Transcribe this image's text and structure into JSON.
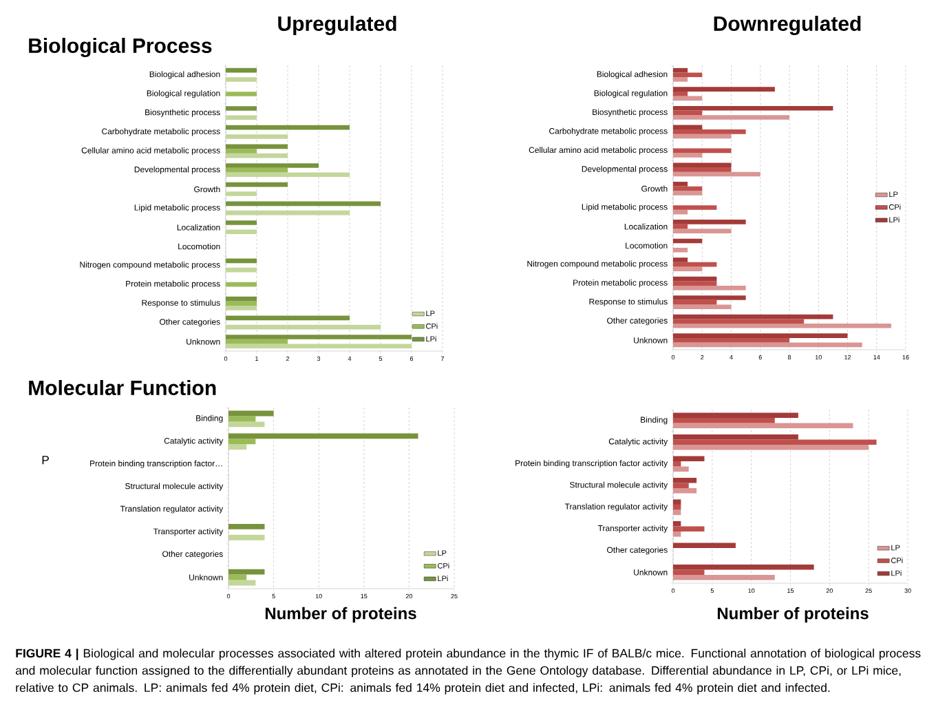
{
  "chart_data": [
    {
      "type": "bar",
      "orientation": "horizontal",
      "title": "Upregulated",
      "subtitle": "Biological Process",
      "categories": [
        "Biological adhesion",
        "Biological regulation",
        "Biosynthetic process",
        "Carbohydrate metabolic process",
        "Cellular amino acid metabolic process",
        "Developmental process",
        "Growth",
        "Lipid metabolic process",
        "Localization",
        "Locomotion",
        "Nitrogen compound metabolic process",
        "Protein metabolic process",
        "Response to stimulus",
        "Other categories",
        "Unknown"
      ],
      "series": [
        {
          "name": "LP",
          "color": "#c3d69b",
          "values": [
            1,
            0,
            1,
            2,
            2,
            4,
            1,
            4,
            1,
            0,
            1,
            0,
            1,
            5,
            6
          ]
        },
        {
          "name": "CPi",
          "color": "#9bbb59",
          "values": [
            0,
            1,
            0,
            0,
            1,
            2,
            0,
            0,
            0,
            0,
            0,
            1,
            1,
            0,
            2
          ]
        },
        {
          "name": "LPi",
          "color": "#77933c",
          "values": [
            1,
            0,
            1,
            4,
            2,
            3,
            2,
            5,
            1,
            0,
            1,
            0,
            1,
            4,
            6
          ]
        }
      ],
      "xlim": [
        0,
        7
      ],
      "xticks": [
        0,
        1,
        2,
        3,
        4,
        5,
        6,
        7
      ],
      "grid": "x",
      "legend": "bottom right"
    },
    {
      "type": "bar",
      "orientation": "horizontal",
      "title": "Downregulated",
      "categories": [
        "Biological adhesion",
        "Biological regulation",
        "Biosynthetic process",
        "Carbohydrate metabolic process",
        "Cellular amino acid metabolic process",
        "Developmental process",
        "Growth",
        "Lipid metabolic process",
        "Localization",
        "Locomotion",
        "Nitrogen compound metabolic process",
        "Protein metabolic process",
        "Response to stimulus",
        "Other categories",
        "Unknown"
      ],
      "series": [
        {
          "name": "LP",
          "color": "#d99694",
          "values": [
            1,
            2,
            8,
            4,
            2,
            6,
            2,
            1,
            4,
            1,
            2,
            5,
            4,
            15,
            13
          ]
        },
        {
          "name": "CPi",
          "color": "#c0504d",
          "values": [
            2,
            1,
            2,
            5,
            4,
            4,
            2,
            3,
            1,
            0,
            3,
            3,
            3,
            9,
            8
          ]
        },
        {
          "name": "LPi",
          "color": "#a33b39",
          "values": [
            1,
            7,
            11,
            2,
            0,
            4,
            1,
            0,
            5,
            2,
            1,
            3,
            5,
            11,
            12
          ]
        }
      ],
      "xlim": [
        0,
        16
      ],
      "xticks": [
        0,
        2,
        4,
        6,
        8,
        10,
        12,
        14,
        16
      ],
      "grid": "x",
      "legend": "right"
    },
    {
      "type": "bar",
      "orientation": "horizontal",
      "subtitle": "Molecular Function",
      "xlabel": "Number of proteins",
      "annotations": [
        "P"
      ],
      "categories": [
        "Binding",
        "Catalytic activity",
        "Protein binding transcription factor…",
        "Structural molecule activity",
        "Translation regulator activity",
        "Transporter activity",
        "Other categories",
        "Unknown"
      ],
      "series": [
        {
          "name": "LP",
          "color": "#c3d69b",
          "values": [
            4,
            2,
            0,
            0,
            0,
            4,
            0,
            3
          ]
        },
        {
          "name": "CPi",
          "color": "#9bbb59",
          "values": [
            3,
            3,
            0,
            0,
            0,
            0,
            0,
            2
          ]
        },
        {
          "name": "LPi",
          "color": "#77933c",
          "values": [
            5,
            21,
            0,
            0,
            0,
            4,
            0,
            4
          ]
        }
      ],
      "xlim": [
        0,
        25
      ],
      "xticks": [
        0,
        5,
        10,
        15,
        20,
        25
      ],
      "grid": "x",
      "legend": "bottom right"
    },
    {
      "type": "bar",
      "orientation": "horizontal",
      "xlabel": "Number of proteins",
      "annotations": [
        "**FIGURE 4 |** Biological and molecular processes associated with altered protein abundance in the thymic IF of BALB/c mice. Functional annotation of biological process and molecular function assigned to the differentially abundant proteins as annotated in the Gene Ontology database. Differential abundance in LP, CPi, or LPi mice, relative to CP animals. LP: animals fed 4% protein diet, CPi: animals fed 14% protein diet and infected, LPi: animals fed 4% protein diet and infected."
      ],
      "categories": [
        "Binding",
        "Catalytic activity",
        "Protein binding transcription factor activity",
        "Structural molecule activity",
        "Translation regulator activity",
        "Transporter activity",
        "Other categories",
        "Unknown"
      ],
      "series": [
        {
          "name": "LP",
          "color": "#d99694",
          "values": [
            23,
            25,
            2,
            3,
            1,
            1,
            0,
            13
          ]
        },
        {
          "name": "CPi",
          "color": "#c0504d",
          "values": [
            13,
            26,
            1,
            2,
            1,
            4,
            0,
            4
          ]
        },
        {
          "name": "LPi",
          "color": "#a33b39",
          "values": [
            16,
            16,
            4,
            3,
            1,
            1,
            8,
            18
          ]
        }
      ],
      "xlim": [
        0,
        30
      ],
      "xticks": [
        0,
        5,
        10,
        15,
        20,
        25,
        30
      ],
      "grid": "x",
      "legend": "bottom right"
    }
  ]
}
